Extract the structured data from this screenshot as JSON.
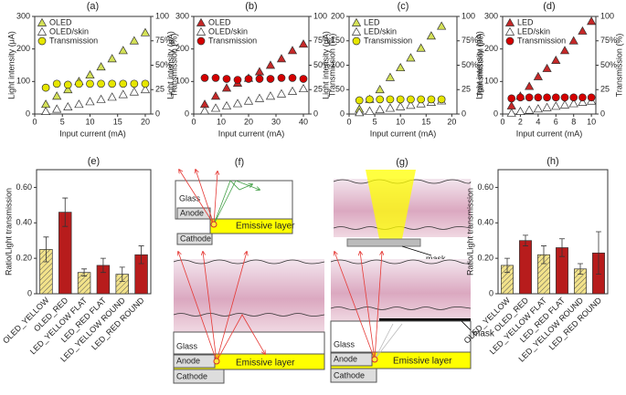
{
  "chart_data": [
    {
      "type": "scatter",
      "title": "(a)",
      "xlabel": "Input current (mA)",
      "ylabel": "Light intensity (μA)",
      "y2label": "Transmission (%)",
      "x": [
        2,
        4,
        6,
        8,
        10,
        12,
        14,
        16,
        18,
        20
      ],
      "xlim": [
        0,
        21
      ],
      "xticks": [
        0,
        5,
        10,
        15,
        20
      ],
      "ylim": [
        0,
        300
      ],
      "yticks": [
        0,
        100,
        200,
        300
      ],
      "y2lim": [
        0,
        100
      ],
      "y2ticks": [
        0,
        25,
        {
          "value": 50,
          "label": "50%"
        },
        {
          "value": 75,
          "label": "75%"
        },
        100
      ],
      "series": [
        {
          "name": "OLED",
          "color": "#d4e157",
          "marker": "triangle",
          "values": [
            30,
            55,
            75,
            100,
            120,
            145,
            170,
            195,
            225,
            250
          ]
        },
        {
          "name": "OLED/skin",
          "color": "#ffffff",
          "marker": "triangle",
          "values": [
            8,
            15,
            22,
            30,
            38,
            45,
            52,
            60,
            68,
            75
          ]
        },
        {
          "name": "Transmission",
          "color": "#e6e600",
          "marker": "circle",
          "axis": "y2",
          "values": [
            27,
            31,
            30,
            31,
            31,
            31,
            31,
            31,
            31,
            31
          ]
        }
      ]
    },
    {
      "type": "scatter",
      "title": "(b)",
      "xlabel": "Input current (mA)",
      "ylabel": "Light intensity (μA)",
      "y2label": "Transmission (%)",
      "x": [
        4,
        8,
        12,
        16,
        20,
        24,
        28,
        32,
        36,
        40
      ],
      "xlim": [
        0,
        42
      ],
      "xticks": [
        0,
        10,
        20,
        30,
        40
      ],
      "ylim": [
        0,
        300
      ],
      "yticks": [
        0,
        100,
        200,
        300
      ],
      "y2lim": [
        0,
        100
      ],
      "y2ticks": [
        0,
        25,
        {
          "value": 50,
          "label": "50%"
        },
        {
          "value": 75,
          "label": "75%"
        },
        100
      ],
      "series": [
        {
          "name": "OLED",
          "color": "#c62828",
          "marker": "triangle",
          "values": [
            30,
            55,
            80,
            95,
            110,
            130,
            150,
            170,
            195,
            215
          ]
        },
        {
          "name": "OLED/skin",
          "color": "#ffffff",
          "marker": "triangle",
          "values": [
            10,
            18,
            25,
            32,
            40,
            48,
            55,
            62,
            70,
            78
          ]
        },
        {
          "name": "Transmission",
          "color": "#d50000",
          "marker": "circle",
          "axis": "y2",
          "values": [
            37,
            37,
            36,
            35,
            36,
            36,
            36,
            37,
            37,
            36
          ]
        }
      ]
    },
    {
      "type": "scatter",
      "title": "(c)",
      "xlabel": "Input current (mA)",
      "ylabel": "Light intensity (μA)",
      "y2label": "Transmission (%)",
      "x": [
        2,
        4,
        6,
        8,
        10,
        12,
        14,
        16,
        18
      ],
      "xlim": [
        0,
        21
      ],
      "xticks": [
        0,
        5,
        10,
        15,
        20
      ],
      "ylim": [
        0,
        200
      ],
      "yticks": [
        0,
        50,
        100,
        150,
        200
      ],
      "y2lim": [
        0,
        100
      ],
      "y2ticks": [
        0,
        25,
        {
          "value": 50,
          "label": "50%"
        },
        {
          "value": 75,
          "label": "75%"
        },
        100
      ],
      "series": [
        {
          "name": "LED",
          "color": "#d4e157",
          "marker": "triangle",
          "values": [
            10,
            30,
            50,
            75,
            95,
            115,
            135,
            160,
            180
          ]
        },
        {
          "name": "LED/skin",
          "color": "#ffffff",
          "marker": "triangle",
          "values": [
            3,
            6,
            9,
            12,
            15,
            18,
            21,
            24,
            27
          ]
        },
        {
          "name": "Transmission",
          "color": "#e6e600",
          "marker": "circle",
          "axis": "y2",
          "values": [
            14,
            15,
            15,
            15,
            15,
            15,
            15,
            15,
            15
          ]
        }
      ]
    },
    {
      "type": "scatter",
      "title": "(d)",
      "xlabel": "Input current (mA)",
      "ylabel": "Light intensity (μA)",
      "y2label": "Transmission (%)",
      "x": [
        1,
        2,
        3,
        4,
        5,
        6,
        7,
        8,
        9,
        10
      ],
      "xlim": [
        0,
        10.5
      ],
      "xticks": [
        0,
        2,
        4,
        6,
        8,
        10
      ],
      "ylim": [
        0,
        300
      ],
      "yticks": [
        0,
        100,
        200,
        300
      ],
      "y2lim": [
        0,
        100
      ],
      "y2ticks": [
        0,
        25,
        {
          "value": 50,
          "label": "50%"
        },
        {
          "value": 75,
          "label": "75%"
        },
        100
      ],
      "series": [
        {
          "name": "LED",
          "color": "#c62828",
          "marker": "triangle",
          "values": [
            25,
            55,
            85,
            115,
            140,
            165,
            195,
            225,
            255,
            285
          ]
        },
        {
          "name": "LED/skin",
          "color": "#ffffff",
          "marker": "triangle",
          "values": [
            3,
            8,
            12,
            16,
            20,
            24,
            28,
            32,
            36,
            40
          ]
        },
        {
          "name": "Transmission",
          "color": "#d50000",
          "marker": "circle",
          "axis": "y2",
          "values": [
            16,
            17,
            17,
            17,
            17,
            17,
            17,
            17,
            17,
            17
          ]
        }
      ]
    },
    {
      "type": "bar",
      "title": "(e)",
      "ylabel": "Ratio/Light transmission",
      "categories": [
        "OLED_YELLOW",
        "OLED_RED",
        "LED_YELLOW FLAT",
        "LED_RED FLAT",
        "LED_YELLOW ROUND",
        "LED_RED ROUND"
      ],
      "values": [
        0.25,
        0.46,
        0.12,
        0.16,
        0.11,
        0.22
      ],
      "errors": [
        0.07,
        0.08,
        0.02,
        0.04,
        0.04,
        0.05
      ],
      "colors": [
        "#f2e28a",
        "#b71c1c",
        "#f2e28a",
        "#b71c1c",
        "#f2e28a",
        "#b71c1c"
      ],
      "hatch": [
        true,
        false,
        true,
        false,
        true,
        false
      ],
      "ylim": [
        0,
        0.7
      ],
      "yticks": [
        0,
        {
          "value": 0.2,
          "label": "0.20"
        },
        {
          "value": 0.4,
          "label": "0.40"
        },
        {
          "value": 0.6,
          "label": "0.60"
        }
      ]
    },
    {
      "type": "bar",
      "title": "(h)",
      "ylabel": "Ratio/Light transmission",
      "categories": [
        "OLED_YELLOW",
        "OLED_RED",
        "LED_YELLOW FLAT",
        "LED_RED FLAT",
        "LED_YELLOW ROUND",
        "LED_RED ROUND"
      ],
      "values": [
        0.16,
        0.3,
        0.22,
        0.26,
        0.14,
        0.23
      ],
      "errors": [
        0.04,
        0.03,
        0.05,
        0.05,
        0.03,
        0.12
      ],
      "colors": [
        "#f2e28a",
        "#b71c1c",
        "#f2e28a",
        "#b71c1c",
        "#f2e28a",
        "#b71c1c"
      ],
      "hatch": [
        true,
        false,
        true,
        false,
        true,
        false
      ],
      "ylim": [
        0,
        0.7
      ],
      "yticks": [
        0,
        {
          "value": 0.2,
          "label": "0.20"
        },
        {
          "value": 0.4,
          "label": "0.40"
        },
        {
          "value": 0.6,
          "label": "0.60"
        }
      ]
    }
  ],
  "diagrams": [
    {
      "label": "(f)",
      "top": {
        "glass": "Glass",
        "anode": "Anode",
        "cathode": "Cathode",
        "emissive": "Emissive layer"
      },
      "bottom": {
        "glass": "Glass",
        "anode": "Anode",
        "cathode": "Cathode",
        "emissive": "Emissive layer"
      }
    },
    {
      "label": "(g)",
      "top": {
        "mask": "mask"
      },
      "bottom": {
        "glass": "Glass",
        "anode": "Anode",
        "cathode": "Cathode",
        "emissive": "Emissive layer",
        "mask": "mask"
      }
    }
  ]
}
